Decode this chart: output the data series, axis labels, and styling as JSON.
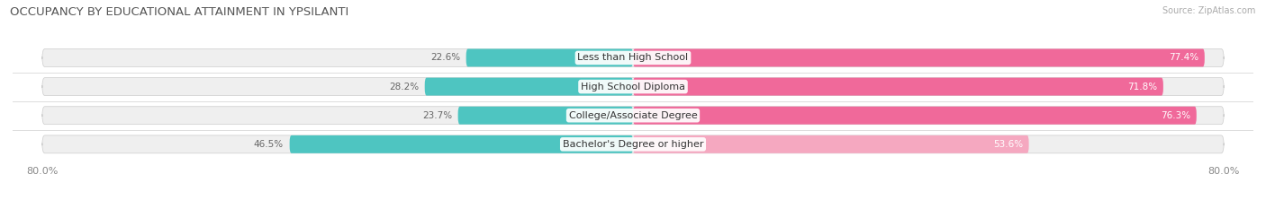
{
  "title": "OCCUPANCY BY EDUCATIONAL ATTAINMENT IN YPSILANTI",
  "source": "Source: ZipAtlas.com",
  "categories": [
    "Less than High School",
    "High School Diploma",
    "College/Associate Degree",
    "Bachelor's Degree or higher"
  ],
  "owner_pct": [
    22.6,
    28.2,
    23.7,
    46.5
  ],
  "renter_pct": [
    77.4,
    71.8,
    76.3,
    53.6
  ],
  "owner_color": "#4EC5C1",
  "renter_colors": [
    "#F0699A",
    "#F0699A",
    "#F0699A",
    "#F5A8C0"
  ],
  "bg_color_even": "#F2F2F2",
  "bg_color_odd": "#EBEBEB",
  "x_left_label": "80.0%",
  "x_right_label": "80.0%",
  "title_fontsize": 9.5,
  "source_fontsize": 7,
  "cat_fontsize": 8,
  "pct_fontsize": 7.5,
  "axis_fontsize": 8,
  "total_width": 80.0
}
